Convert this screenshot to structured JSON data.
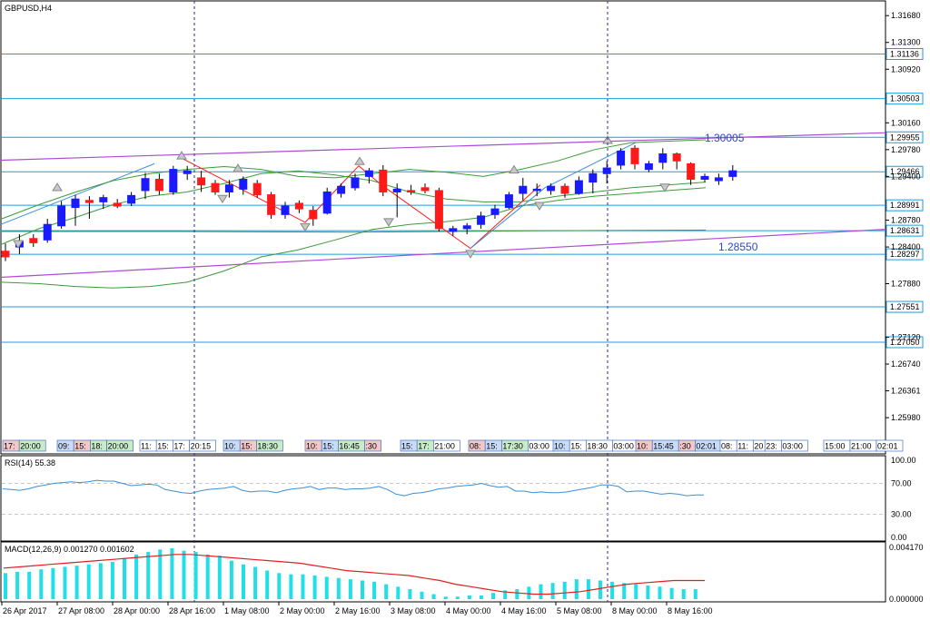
{
  "symbol_title": "GBPUSD,H4",
  "rsi_label": "RSI(14) 55.38",
  "macd_label": "MACD(12,26,9) 0.001270 0.001602",
  "colors": {
    "bull": "#1a1aff",
    "bear": "#ff1a1a",
    "level": "#1e9be0",
    "channel": "#b04bd8",
    "bands": "#3c9a3c",
    "rsi": "#3b8fd6",
    "macd_hist": "#20dfe8",
    "macd_signal": "#e02020",
    "grid_dash": "#c8c8c8",
    "vline": "#2a2aaa"
  },
  "price_axis": {
    "ticks": [
      "1.31680",
      "1.31300",
      "1.30920",
      "1.30160",
      "1.29780",
      "1.29400",
      "1.28780",
      "1.28400",
      "1.27880",
      "1.27120",
      "1.26740",
      "1.26361",
      "1.25980"
    ],
    "min": 1.2575,
    "max": 1.3185
  },
  "levels": [
    {
      "label": "1.31136",
      "value": 1.31136
    },
    {
      "label": "1.30503",
      "value": 1.30503
    },
    {
      "label": "1.29955",
      "value": 1.29955
    },
    {
      "label": "1.29466",
      "value": 1.29466
    },
    {
      "label": "1.28991",
      "value": 1.28991
    },
    {
      "label": "1.28631",
      "value": 1.28631
    },
    {
      "label": "1.28297",
      "value": 1.28297
    },
    {
      "label": "1.27551",
      "value": 1.27551
    },
    {
      "label": "1.27050",
      "value": 1.2705
    }
  ],
  "annotations": [
    {
      "label": "1.30005"
    },
    {
      "label": "1.28550"
    }
  ],
  "time_axis": {
    "labels": [
      "26 Apr 2017",
      "27 Apr 08:00",
      "28 Apr 00:00",
      "28 Apr 16:00",
      "1 May 08:00",
      "2 May 00:00",
      "2 May 16:00",
      "3 May 08:00",
      "4 May 00:00",
      "4 May 16:00",
      "5 May 08:00",
      "8 May 00:00",
      "8 May 16:00"
    ]
  },
  "session_strip": [
    {
      "text": "17:",
      "bg": "#f4c8c8"
    },
    {
      "text": "20:00",
      "bg": "#c8ecc8"
    },
    {
      "text": "09:",
      "bg": "#c8dcf8"
    },
    {
      "text": "15:",
      "bg": "#f4c8c8"
    },
    {
      "text": "18:",
      "bg": "#c8ecc8"
    },
    {
      "text": "20:00",
      "bg": "#c8ecc8"
    },
    {
      "text": "11:",
      "bg": "#ffffff"
    },
    {
      "text": "15:",
      "bg": "#ffffff"
    },
    {
      "text": "17:",
      "bg": "#ffffff"
    },
    {
      "text": "20:15",
      "bg": "#ffffff"
    },
    {
      "text": "10:",
      "bg": "#c8dcf8"
    },
    {
      "text": "15:",
      "bg": "#f4c8c8"
    },
    {
      "text": "18:30",
      "bg": "#c8ecc8"
    },
    {
      "text": "10:",
      "bg": "#f4c8c8"
    },
    {
      "text": "15:",
      "bg": "#c8dcf8"
    },
    {
      "text": "16:45",
      "bg": "#c8ecc8"
    },
    {
      "text": ":30",
      "bg": "#f4c8c8"
    },
    {
      "text": "15:",
      "bg": "#c8dcf8"
    },
    {
      "text": "17:",
      "bg": "#c8ecc8"
    },
    {
      "text": "21:00",
      "bg": "#ffffff"
    },
    {
      "text": "08:",
      "bg": "#f4c8c8"
    },
    {
      "text": "15:",
      "bg": "#c8dcf8"
    },
    {
      "text": "17:30",
      "bg": "#c8ecc8"
    },
    {
      "text": "03:00",
      "bg": "#ffffff"
    },
    {
      "text": "10:",
      "bg": "#c8dcf8"
    },
    {
      "text": "15:",
      "bg": "#ffffff"
    },
    {
      "text": "18:30",
      "bg": "#ffffff"
    },
    {
      "text": "03:00",
      "bg": "#ffffff"
    },
    {
      "text": "10:",
      "bg": "#f4c8c8"
    },
    {
      "text": "15:45",
      "bg": "#c8dcf8"
    },
    {
      "text": ":30",
      "bg": "#f4c8c8"
    },
    {
      "text": "02:01",
      "bg": "#c8dcf8"
    },
    {
      "text": "08:",
      "bg": "#ffffff"
    },
    {
      "text": "11:",
      "bg": "#ffffff"
    },
    {
      "text": "20",
      "bg": "#ffffff"
    },
    {
      "text": "23:",
      "bg": "#ffffff"
    },
    {
      "text": "03:00",
      "bg": "#ffffff"
    },
    {
      "text": "15:00",
      "bg": "#ffffff"
    },
    {
      "text": "21:00",
      "bg": "#ffffff"
    },
    {
      "text": "02:01",
      "bg": "#ffffff"
    }
  ],
  "rsi_axis": {
    "ticks": [
      "100.00",
      "70.00",
      "30.00",
      "0.00"
    ]
  },
  "macd_axis": {
    "ticks": [
      "0.004170",
      "0.000000"
    ]
  },
  "chart_data": {
    "type": "candlestick",
    "title": "GBPUSD,H4",
    "ylim": [
      1.2575,
      1.3185
    ],
    "candles": [
      [
        1.2834,
        1.2845,
        1.282,
        1.2826
      ],
      [
        1.284,
        1.2858,
        1.283,
        1.2848
      ],
      [
        1.2852,
        1.2858,
        1.284,
        1.2846
      ],
      [
        1.285,
        1.288,
        1.2846,
        1.2872
      ],
      [
        1.287,
        1.2905,
        1.2866,
        1.2898
      ],
      [
        1.2896,
        1.2914,
        1.287,
        1.2908
      ],
      [
        1.2906,
        1.2912,
        1.288,
        1.2903
      ],
      [
        1.2904,
        1.2914,
        1.2894,
        1.291
      ],
      [
        1.2902,
        1.2908,
        1.2895,
        1.2898
      ],
      [
        1.2902,
        1.2918,
        1.2898,
        1.2913
      ],
      [
        1.292,
        1.2945,
        1.2908,
        1.2937
      ],
      [
        1.2936,
        1.2944,
        1.2914,
        1.292
      ],
      [
        1.2918,
        1.2955,
        1.2914,
        1.295
      ],
      [
        1.2944,
        1.2955,
        1.2935,
        1.2948
      ],
      [
        1.2938,
        1.2948,
        1.2918,
        1.2928
      ],
      [
        1.293,
        1.2935,
        1.2914,
        1.2918
      ],
      [
        1.2918,
        1.2935,
        1.291,
        1.2928
      ],
      [
        1.2922,
        1.294,
        1.2914,
        1.2936
      ],
      [
        1.293,
        1.2935,
        1.291,
        1.2914
      ],
      [
        1.2914,
        1.2918,
        1.288,
        1.2886
      ],
      [
        1.2886,
        1.2904,
        1.288,
        1.2898
      ],
      [
        1.2902,
        1.2906,
        1.2888,
        1.2894
      ],
      [
        1.2892,
        1.2898,
        1.287,
        1.288
      ],
      [
        1.2888,
        1.2924,
        1.2886,
        1.2918
      ],
      [
        1.2916,
        1.293,
        1.291,
        1.2926
      ],
      [
        1.2924,
        1.2944,
        1.292,
        1.2938
      ],
      [
        1.294,
        1.2952,
        1.293,
        1.2948
      ],
      [
        1.2949,
        1.2956,
        1.2912,
        1.2918
      ],
      [
        1.2918,
        1.293,
        1.2882,
        1.2922
      ],
      [
        1.292,
        1.2928,
        1.2914,
        1.2918
      ],
      [
        1.2924,
        1.293,
        1.2916,
        1.292
      ],
      [
        1.292,
        1.2924,
        1.2862,
        1.2866
      ],
      [
        1.2862,
        1.287,
        1.2856,
        1.2866
      ],
      [
        1.2866,
        1.2874,
        1.2858,
        1.287
      ],
      [
        1.2872,
        1.289,
        1.2866,
        1.2884
      ],
      [
        1.2886,
        1.29,
        1.288,
        1.2894
      ],
      [
        1.2896,
        1.2918,
        1.2894,
        1.2914
      ],
      [
        1.2916,
        1.2938,
        1.2906,
        1.2926
      ],
      [
        1.292,
        1.293,
        1.2912,
        1.2922
      ],
      [
        1.292,
        1.293,
        1.2914,
        1.2926
      ],
      [
        1.2926,
        1.293,
        1.291,
        1.2916
      ],
      [
        1.2916,
        1.294,
        1.2914,
        1.2934
      ],
      [
        1.2932,
        1.295,
        1.2916,
        1.2944
      ],
      [
        1.2944,
        1.2962,
        1.293,
        1.2952
      ],
      [
        1.2956,
        1.298,
        1.295,
        1.2976
      ],
      [
        1.298,
        1.2984,
        1.295,
        1.2958
      ],
      [
        1.295,
        1.2962,
        1.2946,
        1.2958
      ],
      [
        1.296,
        1.298,
        1.295,
        1.2972
      ],
      [
        1.2972,
        1.2974,
        1.295,
        1.2962
      ],
      [
        1.2958,
        1.296,
        1.2928,
        1.2936
      ],
      [
        1.2936,
        1.2944,
        1.2932,
        1.294
      ],
      [
        1.2934,
        1.2944,
        1.2928,
        1.2938
      ],
      [
        1.294,
        1.2956,
        1.2934,
        1.2948
      ]
    ],
    "rsi": [
      63,
      62,
      61,
      63,
      66,
      68,
      70,
      71,
      72,
      71,
      72,
      74,
      73,
      73,
      70,
      67,
      68,
      69,
      68,
      62,
      60,
      58,
      57,
      60,
      62,
      63,
      64,
      66,
      61,
      59,
      60,
      60,
      58,
      61,
      63,
      64,
      66,
      62,
      64,
      64,
      62,
      63,
      63,
      64,
      66,
      62,
      56,
      54,
      57,
      58,
      60,
      63,
      64,
      66,
      67,
      68,
      70,
      67,
      65,
      66,
      60,
      60,
      58,
      59,
      58,
      58,
      59,
      61,
      63,
      65,
      68,
      68,
      66,
      59,
      60,
      60,
      58,
      56,
      57,
      56,
      54,
      55,
      55
    ],
    "macd_hist": [
      0.0021,
      0.0022,
      0.0022,
      0.0024,
      0.0025,
      0.0026,
      0.0027,
      0.0028,
      0.0029,
      0.003,
      0.0033,
      0.0036,
      0.0038,
      0.004,
      0.0041,
      0.0039,
      0.0038,
      0.0036,
      0.0035,
      0.0031,
      0.0028,
      0.0026,
      0.0023,
      0.0021,
      0.002,
      0.002,
      0.0019,
      0.0018,
      0.0017,
      0.0016,
      0.0015,
      0.0014,
      0.0012,
      0.001,
      0.0008,
      0.0006,
      0.0004,
      0.0002,
      0.0002,
      0.0003,
      0.0003,
      0.0005,
      0.0007,
      0.0008,
      0.001,
      0.0012,
      0.0013,
      0.0014,
      0.0016,
      0.0016,
      0.0015,
      0.0014,
      0.0013,
      0.0012,
      0.0011,
      0.001,
      0.0009,
      0.0008,
      0.0008
    ],
    "macd_signal": [
      0.0025,
      0.0026,
      0.0027,
      0.0028,
      0.0029,
      0.003,
      0.0031,
      0.0032,
      0.0033,
      0.0034,
      0.0035,
      0.0036,
      0.0036,
      0.0035,
      0.0034,
      0.0033,
      0.0032,
      0.0031,
      0.003,
      0.0029,
      0.0027,
      0.0025,
      0.0023,
      0.0022,
      0.0021,
      0.002,
      0.0019,
      0.0017,
      0.0015,
      0.0012,
      0.001,
      0.0008,
      0.0006,
      0.0005,
      0.0004,
      0.0004,
      0.0005,
      0.0006,
      0.0008,
      0.001,
      0.0012,
      0.0013,
      0.0014,
      0.0015,
      0.0015,
      0.0015
    ]
  }
}
